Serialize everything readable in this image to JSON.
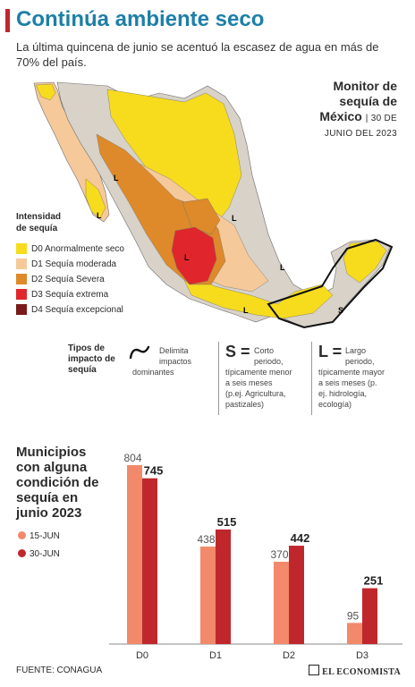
{
  "header": {
    "title": "Continúa ambiente seco",
    "subtitle": "La última quincena de junio se acentuó la escasez de agua en más de 70% del país."
  },
  "monitor": {
    "line1": "Monitor de",
    "line2": "sequía de",
    "line3": "México",
    "date1": "30 DE",
    "date2": "JUNIO DEL 2023"
  },
  "intensity": {
    "title1": "Intensidad",
    "title2": "de sequía",
    "items": [
      {
        "code": "D0",
        "label": "D0 Anormalmente seco",
        "color": "#f7dc1e"
      },
      {
        "code": "D1",
        "label": "D1 Sequía moderada",
        "color": "#f6c99a"
      },
      {
        "code": "D2",
        "label": "D2 Sequía Severa",
        "color": "#de8a2a"
      },
      {
        "code": "D3",
        "label": "D3 Sequía extrema",
        "color": "#e0262c"
      },
      {
        "code": "D4",
        "label": "D4 Sequía excepcional",
        "color": "#7a1a1a"
      }
    ]
  },
  "impact_types": {
    "title1": "Tipos de",
    "title2": "impacto de",
    "title3": "sequía",
    "dominant1": "Delimita",
    "dominant2": "impactos",
    "dominant3": "dominantes",
    "short_letter": "S =",
    "short1": "Corto",
    "short2": "periodo,",
    "short3": "típicamente menor",
    "short4": "a seis meses",
    "short5": "(p.ej. Agricultura,",
    "short6": "pastizales)",
    "long_letter": "L =",
    "long1": "Largo",
    "long2": "periodo,",
    "long3": "típicamente mayor",
    "long4": "a seis meses (p.",
    "long5": "ej. hidrología,",
    "long6": "ecología)"
  },
  "map_labels": [
    "L",
    "L",
    "L",
    "L",
    "L",
    "L",
    "S"
  ],
  "chart_data": {
    "type": "bar",
    "title": "Municipios con alguna condición de sequía en junio 2023",
    "title_lines": [
      "Municipios",
      "con alguna",
      "condición de",
      "sequía en",
      "junio 2023"
    ],
    "categories": [
      "D0",
      "D1",
      "D2",
      "D3"
    ],
    "series": [
      {
        "name": "15-JUN",
        "values": [
          804,
          438,
          370,
          95
        ],
        "color": "#f2896b"
      },
      {
        "name": "30-JUN",
        "values": [
          745,
          515,
          442,
          251
        ],
        "color": "#c0272d"
      }
    ],
    "ylim": [
      0,
      804
    ]
  },
  "footer": {
    "source": "FUENTE: CONAGUA",
    "brand": "EL ECONOMISTA"
  }
}
